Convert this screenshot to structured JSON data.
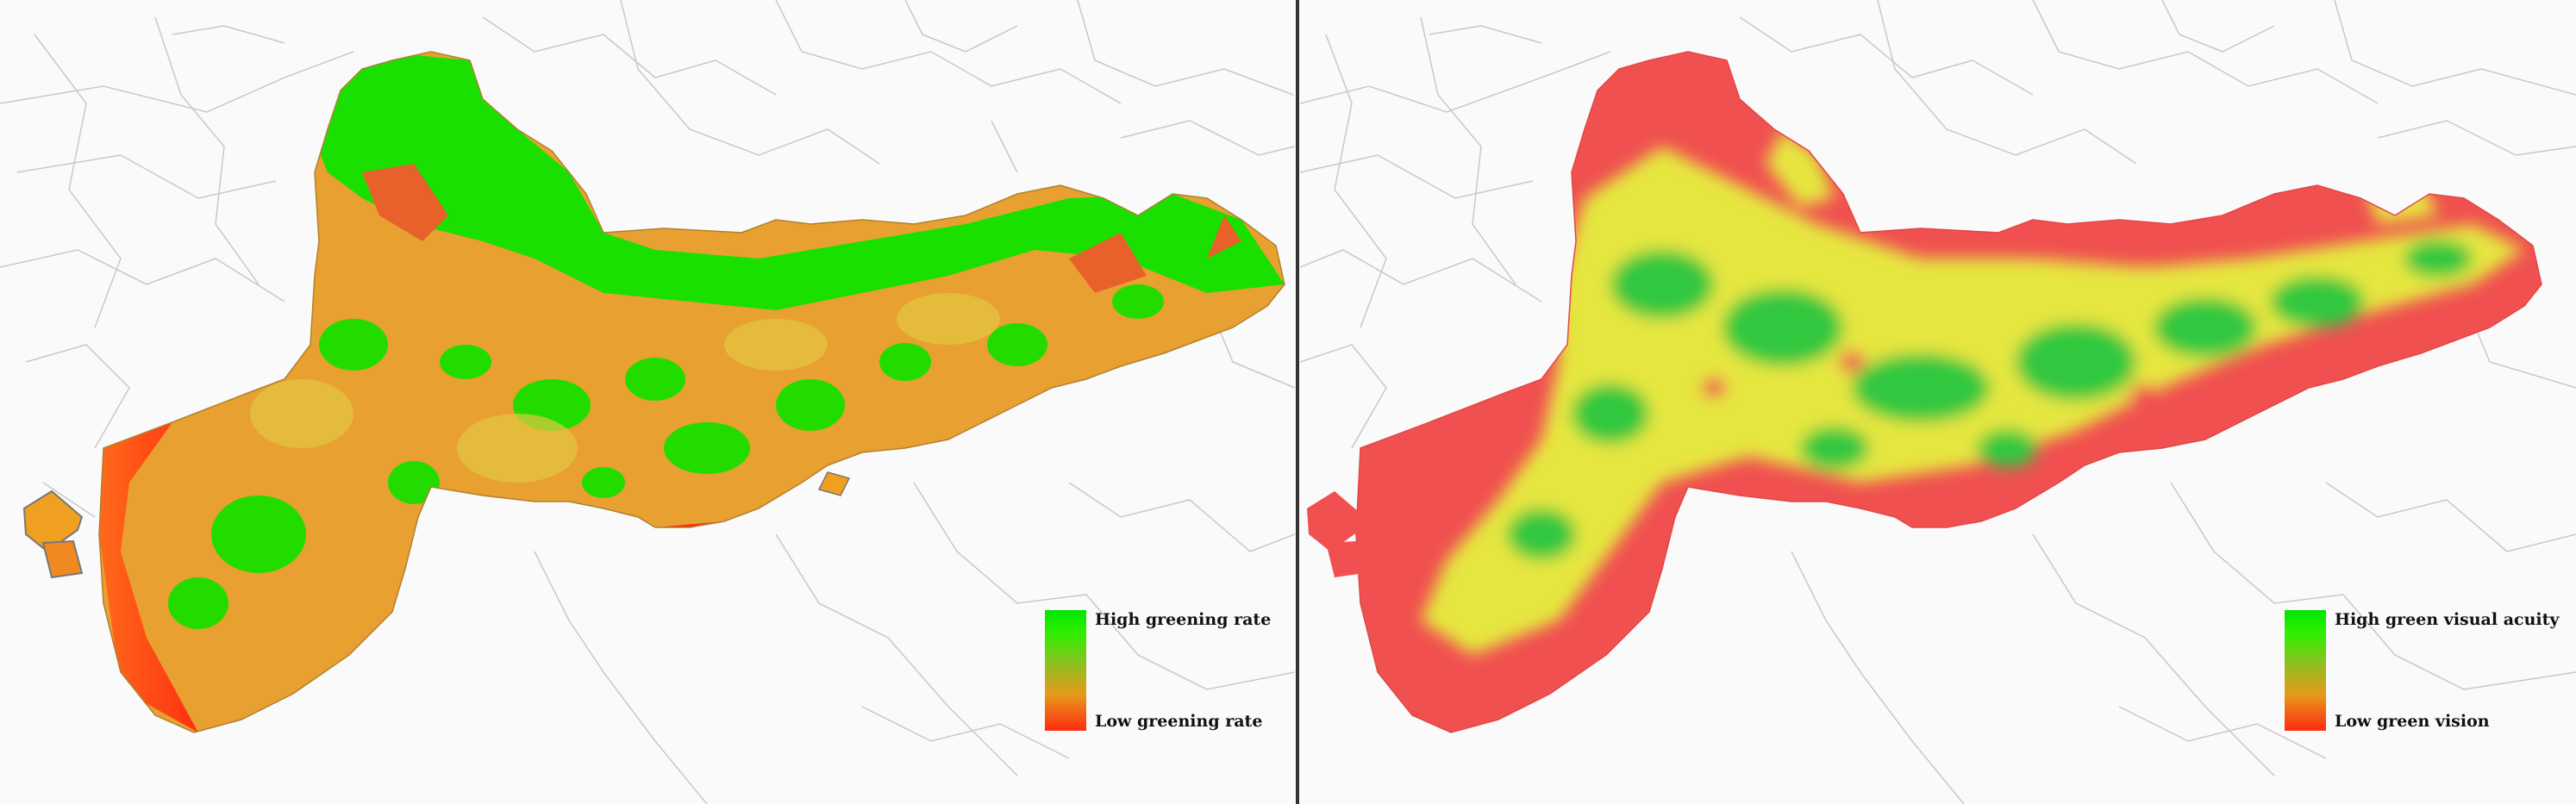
{
  "panels": [
    {
      "id": "greening-rate",
      "legend": {
        "high_label": "High greening rate",
        "low_label": "Low greening rate",
        "high_color": "#00e600",
        "low_color": "#ff2b10"
      }
    },
    {
      "id": "green-vision",
      "legend": {
        "high_label": "High green visual acuity",
        "low_label": "Low green vision",
        "high_color": "#00e600",
        "low_color": "#ff2b10"
      }
    }
  ],
  "colors": {
    "background": "#fafafa",
    "boundary_lines": "#c8c8c8",
    "green": "#00e600",
    "yellow": "#e8e83a",
    "orange": "#f0a020",
    "red": "#f04848",
    "divider": "#333333"
  }
}
